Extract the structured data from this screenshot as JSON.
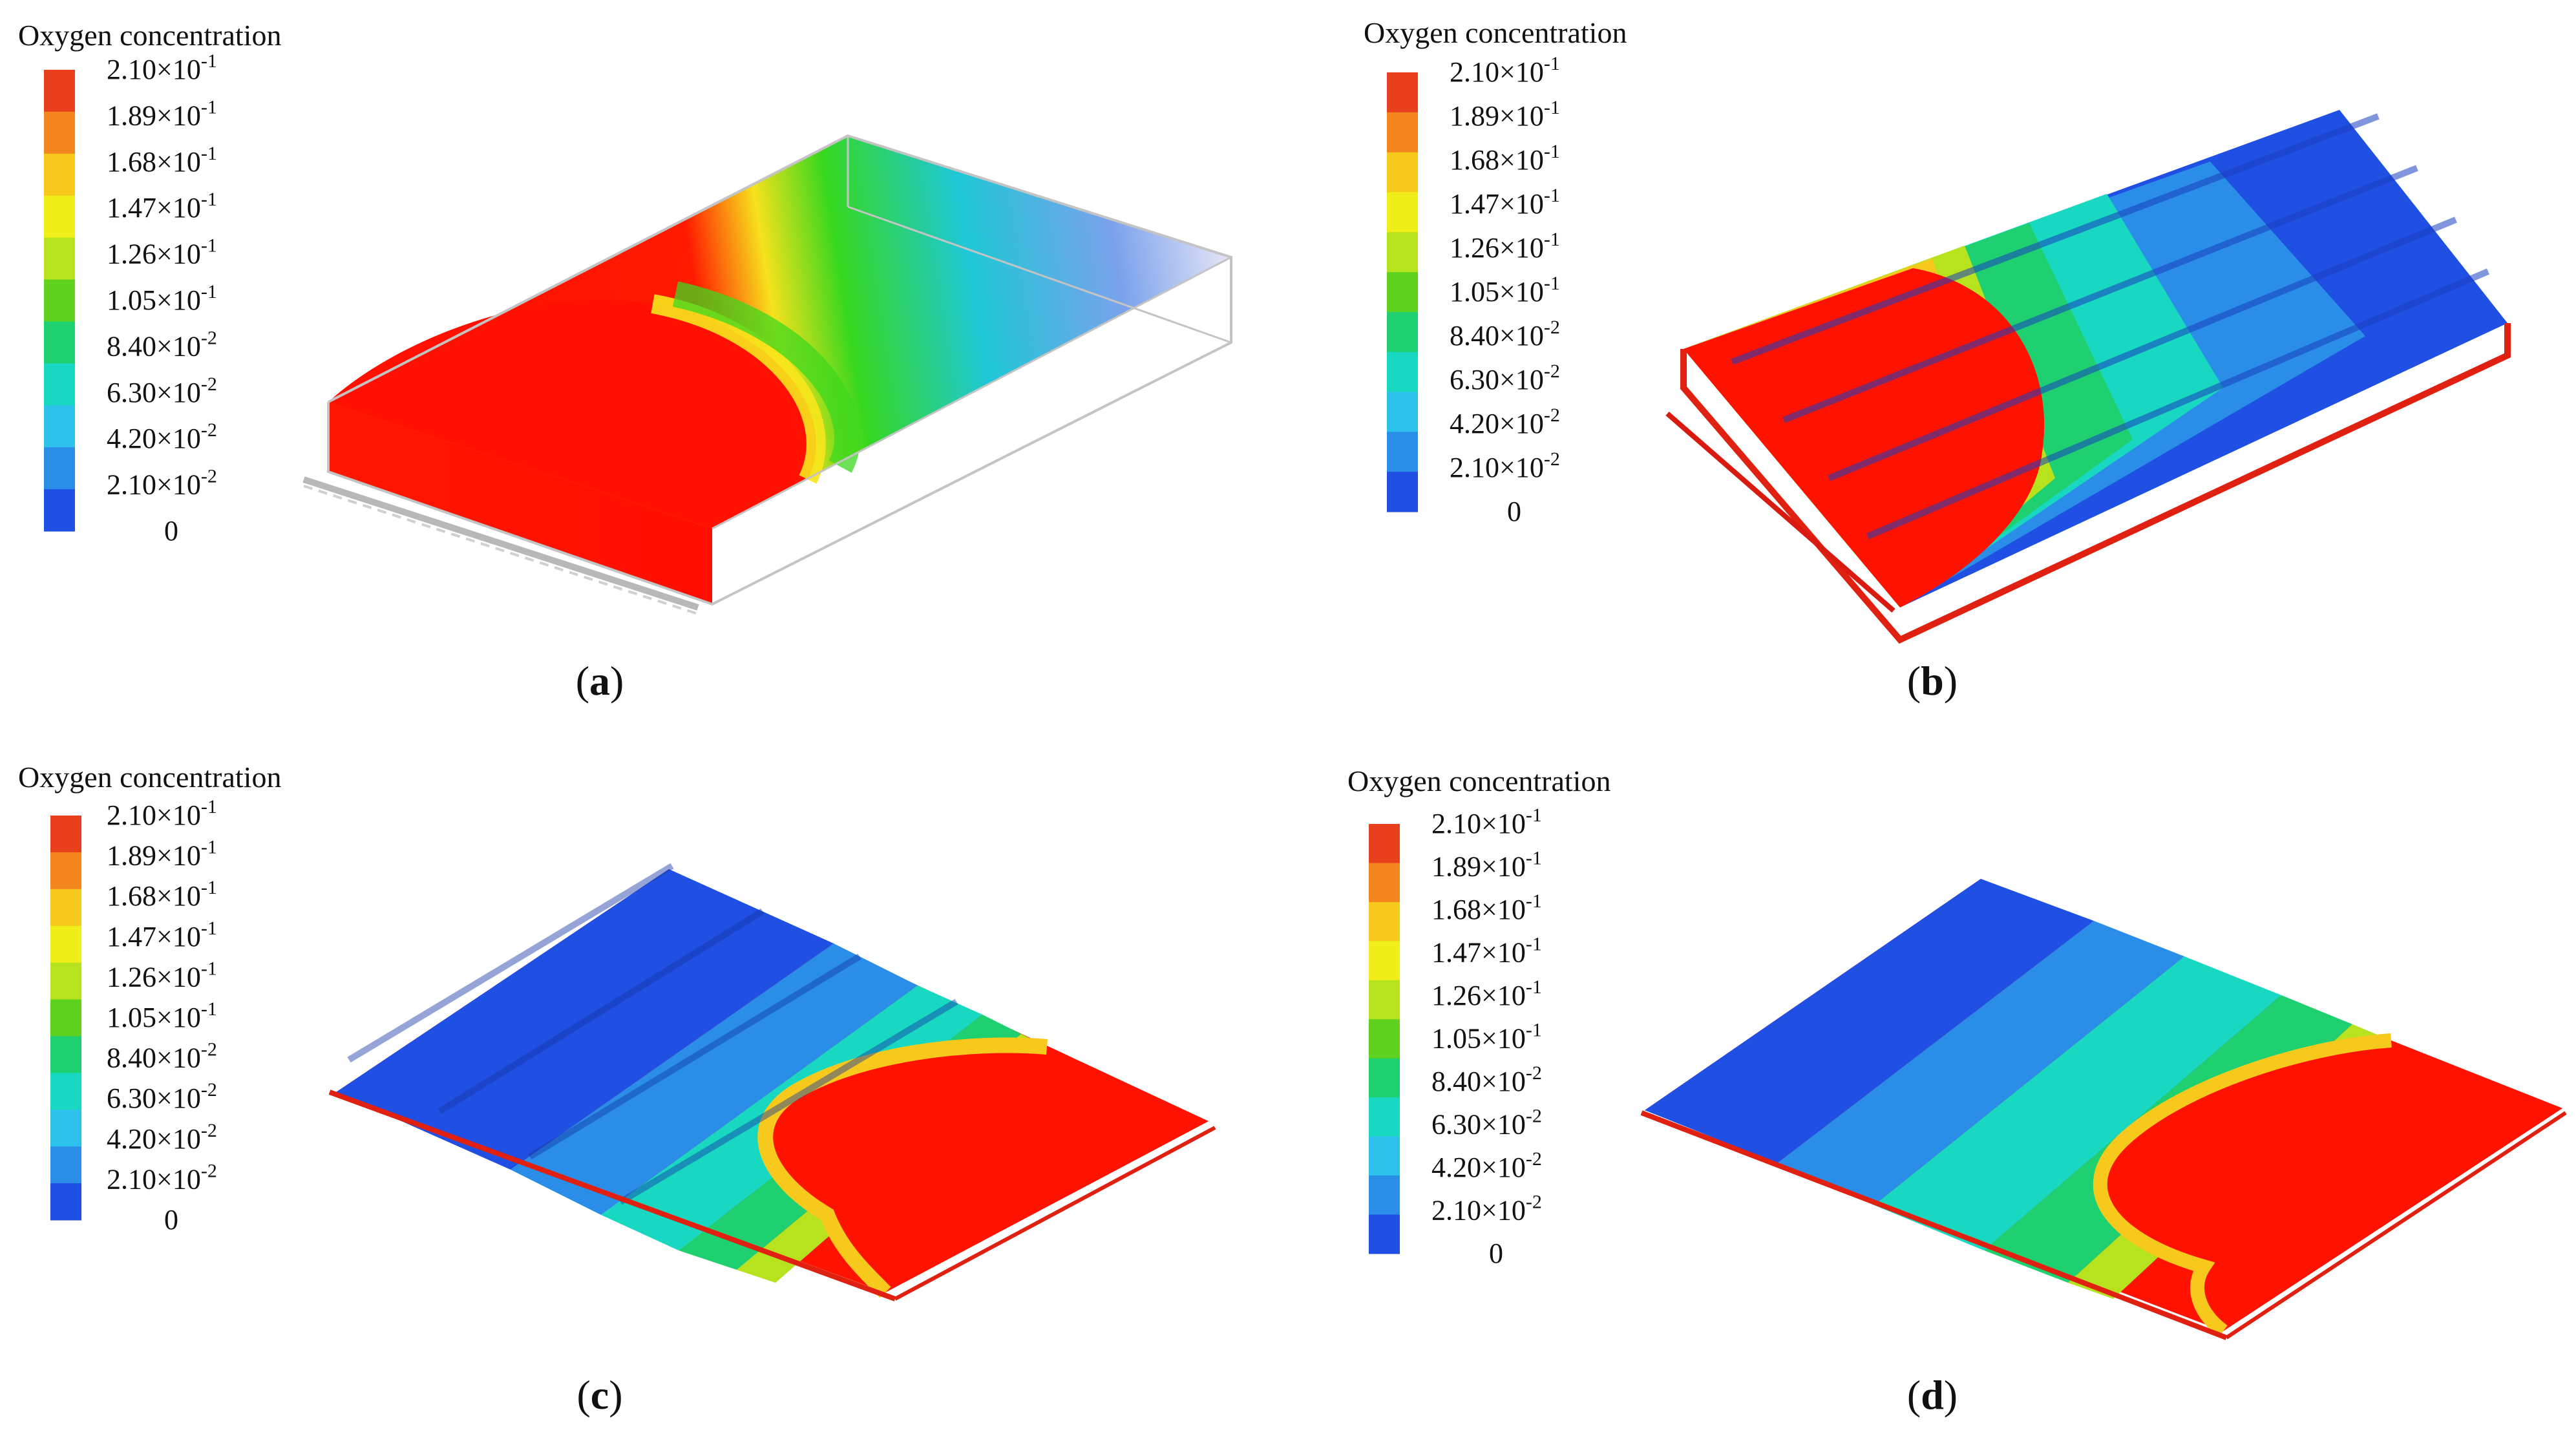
{
  "legend": {
    "title": "Oxygen  concentration",
    "colors": [
      "#e8401c",
      "#f3861e",
      "#f6c91c",
      "#f1ef1a",
      "#b6e21e",
      "#5ed21e",
      "#1ed070",
      "#18d8c2",
      "#2cc2ec",
      "#2a8ee8",
      "#1f4fe3"
    ],
    "ticks": [
      {
        "m": "2.10×10",
        "e": "-1"
      },
      {
        "m": "1.89×10",
        "e": "-1"
      },
      {
        "m": "1.68×10",
        "e": "-1"
      },
      {
        "m": "1.47×10",
        "e": "-1"
      },
      {
        "m": "1.26×10",
        "e": "-1"
      },
      {
        "m": "1.05×10",
        "e": "-1"
      },
      {
        "m": "8.40×10",
        "e": "-2"
      },
      {
        "m": "6.30×10",
        "e": "-2"
      },
      {
        "m": "4.20×10",
        "e": "-2"
      },
      {
        "m": "2.10×10",
        "e": "-2"
      },
      {
        "m": "0",
        "e": ""
      }
    ]
  },
  "panels": [
    {
      "label_open": "(",
      "label_letter": "a",
      "label_close": ")"
    },
    {
      "label_open": "(",
      "label_letter": "b",
      "label_close": ")"
    },
    {
      "label_open": "(",
      "label_letter": "c",
      "label_close": ")"
    },
    {
      "label_open": "(",
      "label_letter": "d",
      "label_close": ")"
    }
  ]
}
